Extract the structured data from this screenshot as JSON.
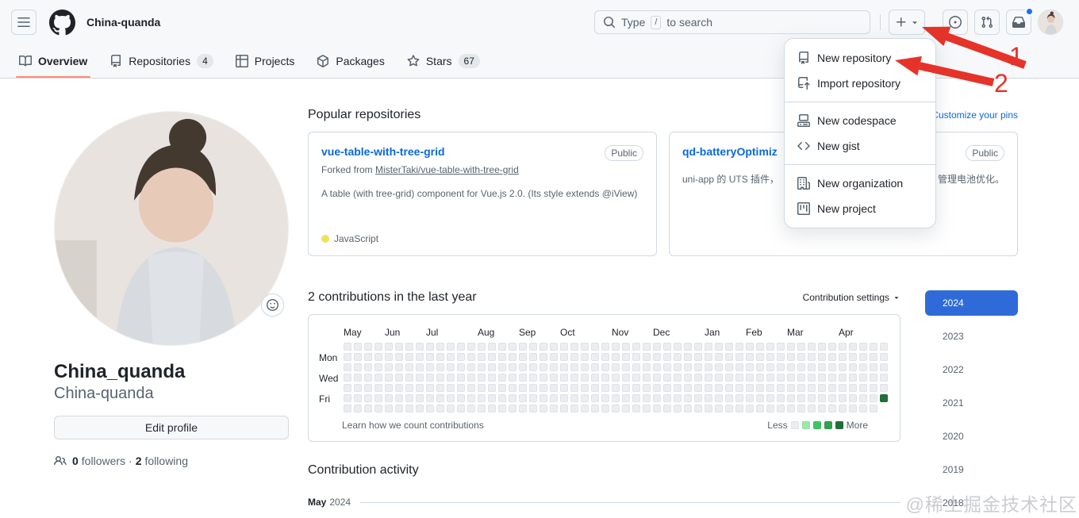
{
  "header": {
    "username": "China-quanda",
    "search": {
      "prefix": "Type",
      "slash_key": "/",
      "suffix": "to search"
    }
  },
  "nav": {
    "tabs": [
      {
        "label": "Overview"
      },
      {
        "label": "Repositories",
        "count": "4"
      },
      {
        "label": "Projects"
      },
      {
        "label": "Packages"
      },
      {
        "label": "Stars",
        "count": "67"
      }
    ]
  },
  "create_menu": {
    "items": [
      {
        "label": "New repository"
      },
      {
        "label": "Import repository"
      },
      {
        "label": "New codespace"
      },
      {
        "label": "New gist"
      },
      {
        "label": "New organization"
      },
      {
        "label": "New project"
      }
    ]
  },
  "profile": {
    "display_name": "China_quanda",
    "login": "China-quanda",
    "edit_button": "Edit profile",
    "followers_count": "0",
    "followers_label": "followers",
    "separator": "·",
    "following_count": "2",
    "following_label": "following"
  },
  "popular": {
    "title": "Popular repositories",
    "customize_link": "Customize your pins",
    "repos": [
      {
        "name": "vue-table-with-tree-grid",
        "visibility": "Public",
        "fork_prefix": "Forked from",
        "fork_source": "MisterTaki/vue-table-with-tree-grid",
        "description": "A table (with tree-grid) component for Vue.js 2.0. (Its style extends @iView)",
        "language": "JavaScript",
        "language_color": "#f1e05a"
      },
      {
        "name": "qd-batteryOptimiz",
        "visibility": "Public",
        "description_left": "uni-app 的 UTS 插件，",
        "description_right": "管理电池优化。"
      }
    ]
  },
  "contributions": {
    "title": "2 contributions in the last year",
    "settings_label": "Contribution settings",
    "learn_link": "Learn how we count contributions",
    "less_label": "Less",
    "more_label": "More",
    "day_labels": [
      "Mon",
      "Wed",
      "Fri"
    ],
    "months": [
      {
        "label": "May",
        "week": 0
      },
      {
        "label": "Jun",
        "week": 4
      },
      {
        "label": "Jul",
        "week": 8
      },
      {
        "label": "Aug",
        "week": 13
      },
      {
        "label": "Sep",
        "week": 17
      },
      {
        "label": "Oct",
        "week": 21
      },
      {
        "label": "Nov",
        "week": 26
      },
      {
        "label": "Dec",
        "week": 30
      },
      {
        "label": "Jan",
        "week": 35
      },
      {
        "label": "Feb",
        "week": 39
      },
      {
        "label": "Mar",
        "week": 43
      },
      {
        "label": "Apr",
        "week": 48
      }
    ],
    "grid": {
      "weeks": 53,
      "days": 7,
      "cell_size": 10,
      "cell_gap": 3,
      "empty_color": "#ebedf0",
      "last_week_days": 6,
      "active_cells": [
        {
          "week": 52,
          "day": 5,
          "color": "#216e39",
          "value": 2
        }
      ]
    },
    "legend_colors": [
      "#ebedf0",
      "#9be9a8",
      "#40c463",
      "#30a14e",
      "#216e39"
    ]
  },
  "years": [
    {
      "label": "2024",
      "active": true
    },
    {
      "label": "2023"
    },
    {
      "label": "2022"
    },
    {
      "label": "2021"
    },
    {
      "label": "2020"
    },
    {
      "label": "2019"
    },
    {
      "label": "2018"
    }
  ],
  "activity": {
    "title": "Contribution activity",
    "month": "May",
    "year": "2024"
  },
  "annotations": {
    "labels": [
      "1",
      "2"
    ],
    "arrow_color": "#e5332a"
  },
  "colors": {
    "accent_link": "#0969da",
    "tab_underline": "#fd8c73",
    "year_active_bg": "#2f6bd8",
    "notification_dot": "#1f6feb"
  },
  "watermark": "@稀土掘金技术社区"
}
